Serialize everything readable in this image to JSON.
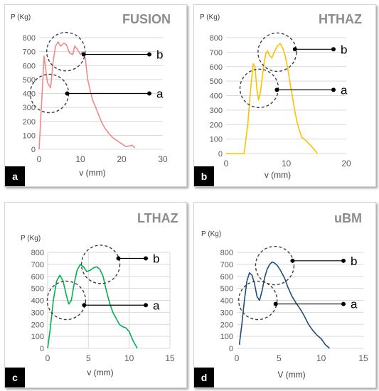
{
  "chart_data": [
    {
      "type": "line",
      "title": "FUSION",
      "panel_label": "a",
      "ylabel": "P (Kg)",
      "xlabel": "v (mm)",
      "xlim": [
        0,
        30
      ],
      "ylim": [
        0,
        800
      ],
      "xticks": [
        0,
        10,
        20,
        30
      ],
      "yticks": [
        0,
        100,
        200,
        300,
        400,
        500,
        600,
        700,
        800
      ],
      "grid": "horizontal",
      "series_color": "#f08a8a",
      "series": [
        {
          "x": [
            0,
            0.6,
            1.2,
            2,
            2.8,
            3.4,
            4,
            4.6,
            5.2,
            6,
            6.6,
            7.4,
            8.2,
            8.6,
            9.2,
            10,
            10.6,
            11.2,
            11.8,
            12.4,
            13,
            13.6,
            14.4,
            15.2,
            16,
            17,
            18,
            19,
            20,
            21,
            22,
            22.5,
            23.2
          ],
          "y": [
            0,
            330,
            670,
            480,
            440,
            630,
            740,
            770,
            740,
            760,
            750,
            690,
            680,
            740,
            720,
            680,
            700,
            650,
            500,
            420,
            350,
            310,
            250,
            190,
            150,
            110,
            80,
            60,
            40,
            20,
            25,
            30,
            10
          ]
        }
      ],
      "annotations": [
        {
          "label": "a",
          "pointer_y": 400,
          "circle_center": [
            2.5,
            400
          ]
        },
        {
          "label": "b",
          "pointer_y": 680,
          "circle_center": [
            6.5,
            700
          ]
        }
      ]
    },
    {
      "type": "line",
      "title": "HTHAZ",
      "panel_label": "b",
      "ylabel": "P (Kg)",
      "xlabel": "v (mm)",
      "xlim": [
        0,
        20
      ],
      "ylim": [
        0,
        800
      ],
      "xticks": [
        0,
        10,
        20
      ],
      "yticks": [
        0,
        100,
        200,
        300,
        400,
        500,
        600,
        700,
        800
      ],
      "grid": "horizontal",
      "series_color": "#ffc000",
      "series": [
        {
          "x": [
            0,
            3,
            3.6,
            4.1,
            4.5,
            4.8,
            5.1,
            5.4,
            5.7,
            6.0,
            6.3,
            6.6,
            6.9,
            7.2,
            7.6,
            8.0,
            8.5,
            9.0,
            9.4,
            9.8,
            10.2,
            10.6,
            11,
            11.4,
            11.8,
            12.2,
            12.6,
            13,
            13.5,
            14,
            14.6,
            15.2
          ],
          "y": [
            0,
            0,
            200,
            450,
            620,
            600,
            450,
            370,
            420,
            520,
            620,
            690,
            710,
            680,
            660,
            700,
            740,
            760,
            730,
            680,
            600,
            500,
            400,
            300,
            220,
            160,
            110,
            100,
            80,
            60,
            30,
            0
          ]
        }
      ],
      "annotations": [
        {
          "label": "a",
          "pointer_y": 440,
          "circle_center": [
            5.5,
            450
          ]
        },
        {
          "label": "b",
          "pointer_y": 720,
          "circle_center": [
            8.5,
            700
          ]
        }
      ]
    },
    {
      "type": "line",
      "title": "LTHAZ",
      "panel_label": "c",
      "ylabel": "P (Kg)",
      "xlabel": "v (mm)",
      "xlim": [
        0,
        15
      ],
      "ylim": [
        0,
        800
      ],
      "xticks": [
        0,
        5,
        10,
        15
      ],
      "yticks": [
        0,
        100,
        200,
        300,
        400,
        500,
        600,
        700,
        800
      ],
      "grid": "both",
      "series_color": "#00b050",
      "series": [
        {
          "x": [
            0,
            0.3,
            0.7,
            1.1,
            1.5,
            1.9,
            2.3,
            2.6,
            2.9,
            3.2,
            3.6,
            4.0,
            4.4,
            4.8,
            5.2,
            5.6,
            6.0,
            6.4,
            6.8,
            7.2,
            7.6,
            8.0,
            8.4,
            8.8,
            9.2,
            9.6,
            10,
            10.5,
            11
          ],
          "y": [
            0,
            150,
            400,
            560,
            610,
            560,
            440,
            370,
            400,
            520,
            650,
            700,
            680,
            640,
            650,
            670,
            680,
            660,
            600,
            480,
            380,
            300,
            250,
            200,
            180,
            170,
            140,
            60,
            0
          ]
        }
      ],
      "annotations": [
        {
          "label": "a",
          "pointer_y": 360,
          "circle_center": [
            2.3,
            400
          ]
        },
        {
          "label": "b",
          "pointer_y": 750,
          "circle_center": [
            6.5,
            700
          ]
        }
      ]
    },
    {
      "type": "line",
      "title": "uBM",
      "panel_label": "d",
      "ylabel": "P (Kg)",
      "xlabel": "V (mm)",
      "xlim": [
        0,
        15
      ],
      "ylim": [
        0,
        800
      ],
      "xticks": [
        0,
        5,
        10,
        15
      ],
      "yticks": [
        0,
        100,
        200,
        300,
        400,
        500,
        600,
        700,
        800
      ],
      "grid": "horizontal",
      "series_color": "#1f4e79",
      "series": [
        {
          "x": [
            0.3,
            0.6,
            0.9,
            1.2,
            1.5,
            1.8,
            2.1,
            2.4,
            2.7,
            3.0,
            3.3,
            3.6,
            3.9,
            4.2,
            4.5,
            4.8,
            5.1,
            5.4,
            5.7,
            6.0,
            6.5,
            7.0,
            7.5,
            8.0,
            8.5,
            9.0,
            9.5,
            10,
            10.5,
            11
          ],
          "y": [
            30,
            200,
            400,
            560,
            630,
            610,
            540,
            430,
            400,
            480,
            590,
            660,
            700,
            720,
            710,
            690,
            660,
            620,
            580,
            520,
            440,
            380,
            330,
            270,
            200,
            150,
            110,
            80,
            30,
            0
          ]
        }
      ],
      "annotations": [
        {
          "label": "a",
          "pointer_y": 370,
          "circle_center": [
            2.5,
            400
          ]
        },
        {
          "label": "b",
          "pointer_y": 730,
          "circle_center": [
            4.5,
            690
          ]
        }
      ]
    }
  ]
}
